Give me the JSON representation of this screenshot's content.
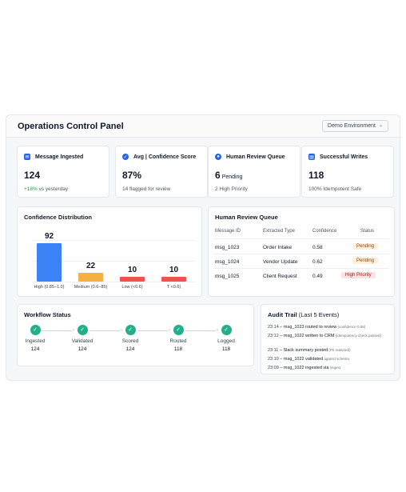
{
  "header": {
    "title": "Operations Control Panel",
    "env_label": "Demo Environment"
  },
  "kpis": [
    {
      "label": "Message Ingested",
      "value": "124",
      "value_suffix": "",
      "sub_accent": "+18%",
      "sub": " vs yesterday",
      "icon": "envelope-icon",
      "color": "#2563eb"
    },
    {
      "label": "Avg | Confidence Score",
      "value": "87%",
      "value_suffix": "",
      "sub_accent": "",
      "sub": "14 flagged for review",
      "icon": "check-circle-icon",
      "color": "#2563eb"
    },
    {
      "label": "Human Review Queue",
      "value": "6",
      "value_suffix": "Pending",
      "sub_accent": "",
      "sub": "2 High Priority",
      "icon": "person-icon",
      "color": "#2563eb"
    },
    {
      "label": "Successful Writes",
      "value": "118",
      "value_suffix": "",
      "sub_accent": "",
      "sub": "100% Idempotent Safe",
      "icon": "database-icon",
      "color": "#2563eb"
    }
  ],
  "confidence": {
    "title": "Confidence Distribution"
  },
  "chart_data": {
    "type": "bar",
    "title": "Confidence Distribution",
    "categories": [
      "High (0.85–1.0)",
      "Medium (0.6–85)",
      "Low (<0.6)",
      "T <0.6)"
    ],
    "values": [
      92,
      22,
      10,
      10
    ],
    "colors": [
      "#3b82f6",
      "#f5b041",
      "#ef5350",
      "#ef5350"
    ],
    "ylim": [
      0,
      100
    ],
    "grid": true
  },
  "review": {
    "title": "Human Review Queue",
    "columns": [
      "Message ID",
      "Extracted Type",
      "Confidence",
      "Status"
    ],
    "rows": [
      {
        "id": "msg_1023",
        "type": "Order Intake",
        "conf": "0.58",
        "status": "Pending",
        "kind": "pending"
      },
      {
        "id": "msg_1024",
        "type": "Vendor Update",
        "conf": "0.62",
        "status": "Pending",
        "kind": "pending"
      },
      {
        "id": "msg_1025",
        "type": "Client Request",
        "conf": "0.49",
        "status": "High Priority",
        "kind": "high"
      }
    ]
  },
  "workflow": {
    "title": "Workflow Status",
    "steps": [
      {
        "label": "Ingested",
        "count": "124"
      },
      {
        "label": "Validated",
        "count": "124"
      },
      {
        "label": "Scored",
        "count": "124"
      },
      {
        "label": "Routed",
        "count": "118"
      },
      {
        "label": "Logged",
        "count": "118"
      }
    ]
  },
  "audit": {
    "title": "Audit Trail",
    "title_note": "(Last 5 Events)",
    "events": [
      {
        "time": "23:14",
        "id": "msg_1023",
        "text": " routed to review",
        "note": " (confidence 0.58)"
      },
      {
        "time": "23:12",
        "id": "msg_1022",
        "text": " written to CRM",
        "note": " (idempotency check passed)"
      },
      {
        "time": "23:11",
        "id": "",
        "text": "Slack summary posted",
        "note": " (PII redacted)"
      },
      {
        "time": "23:10",
        "id": "msg_1022",
        "text": " validated",
        "note": " against schema"
      },
      {
        "time": "23:09",
        "id": "msg_1022",
        "text": " ingested via",
        "note": " /ingest"
      }
    ]
  }
}
